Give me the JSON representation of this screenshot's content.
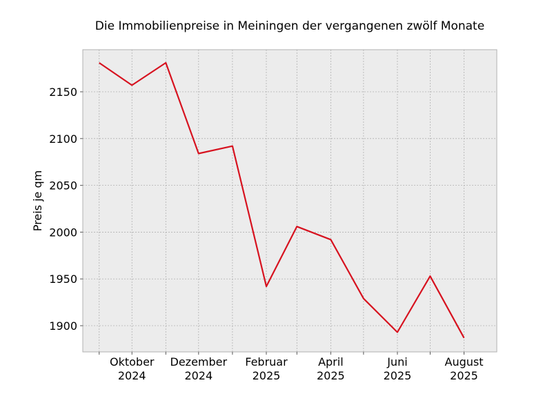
{
  "chart_data": {
    "type": "line",
    "title": "Die Immobilienpreise in Meiningen der vergangenen zwölf Monate",
    "xlabel": "",
    "ylabel": "Preis je qm",
    "x": [
      "2024-09",
      "2024-10",
      "2024-11",
      "2024-12",
      "2025-01",
      "2025-02",
      "2025-03",
      "2025-04",
      "2025-05",
      "2025-06",
      "2025-07",
      "2025-08"
    ],
    "series": [
      {
        "values": [
          2181,
          2157,
          2181,
          2084,
          2092,
          1942,
          2006,
          1992,
          1929,
          1893,
          1953,
          1887
        ],
        "color": "#d7121f"
      }
    ],
    "x_tick_labels": [
      {
        "x": "2024-10",
        "month": "Oktober",
        "year": "2024"
      },
      {
        "x": "2024-12",
        "month": "Dezember",
        "year": "2024"
      },
      {
        "x": "2025-02",
        "month": "Februar",
        "year": "2025"
      },
      {
        "x": "2025-04",
        "month": "April",
        "year": "2025"
      },
      {
        "x": "2025-06",
        "month": "Juni",
        "year": "2025"
      },
      {
        "x": "2025-08",
        "month": "August",
        "year": "2025"
      }
    ],
    "y_ticks": [
      1900,
      1950,
      2000,
      2050,
      2100,
      2150
    ],
    "ylim": [
      1872,
      2195
    ],
    "xlim": [
      "2024-08-17",
      "2025-08-31"
    ],
    "grid": true,
    "background": "#ececec"
  }
}
